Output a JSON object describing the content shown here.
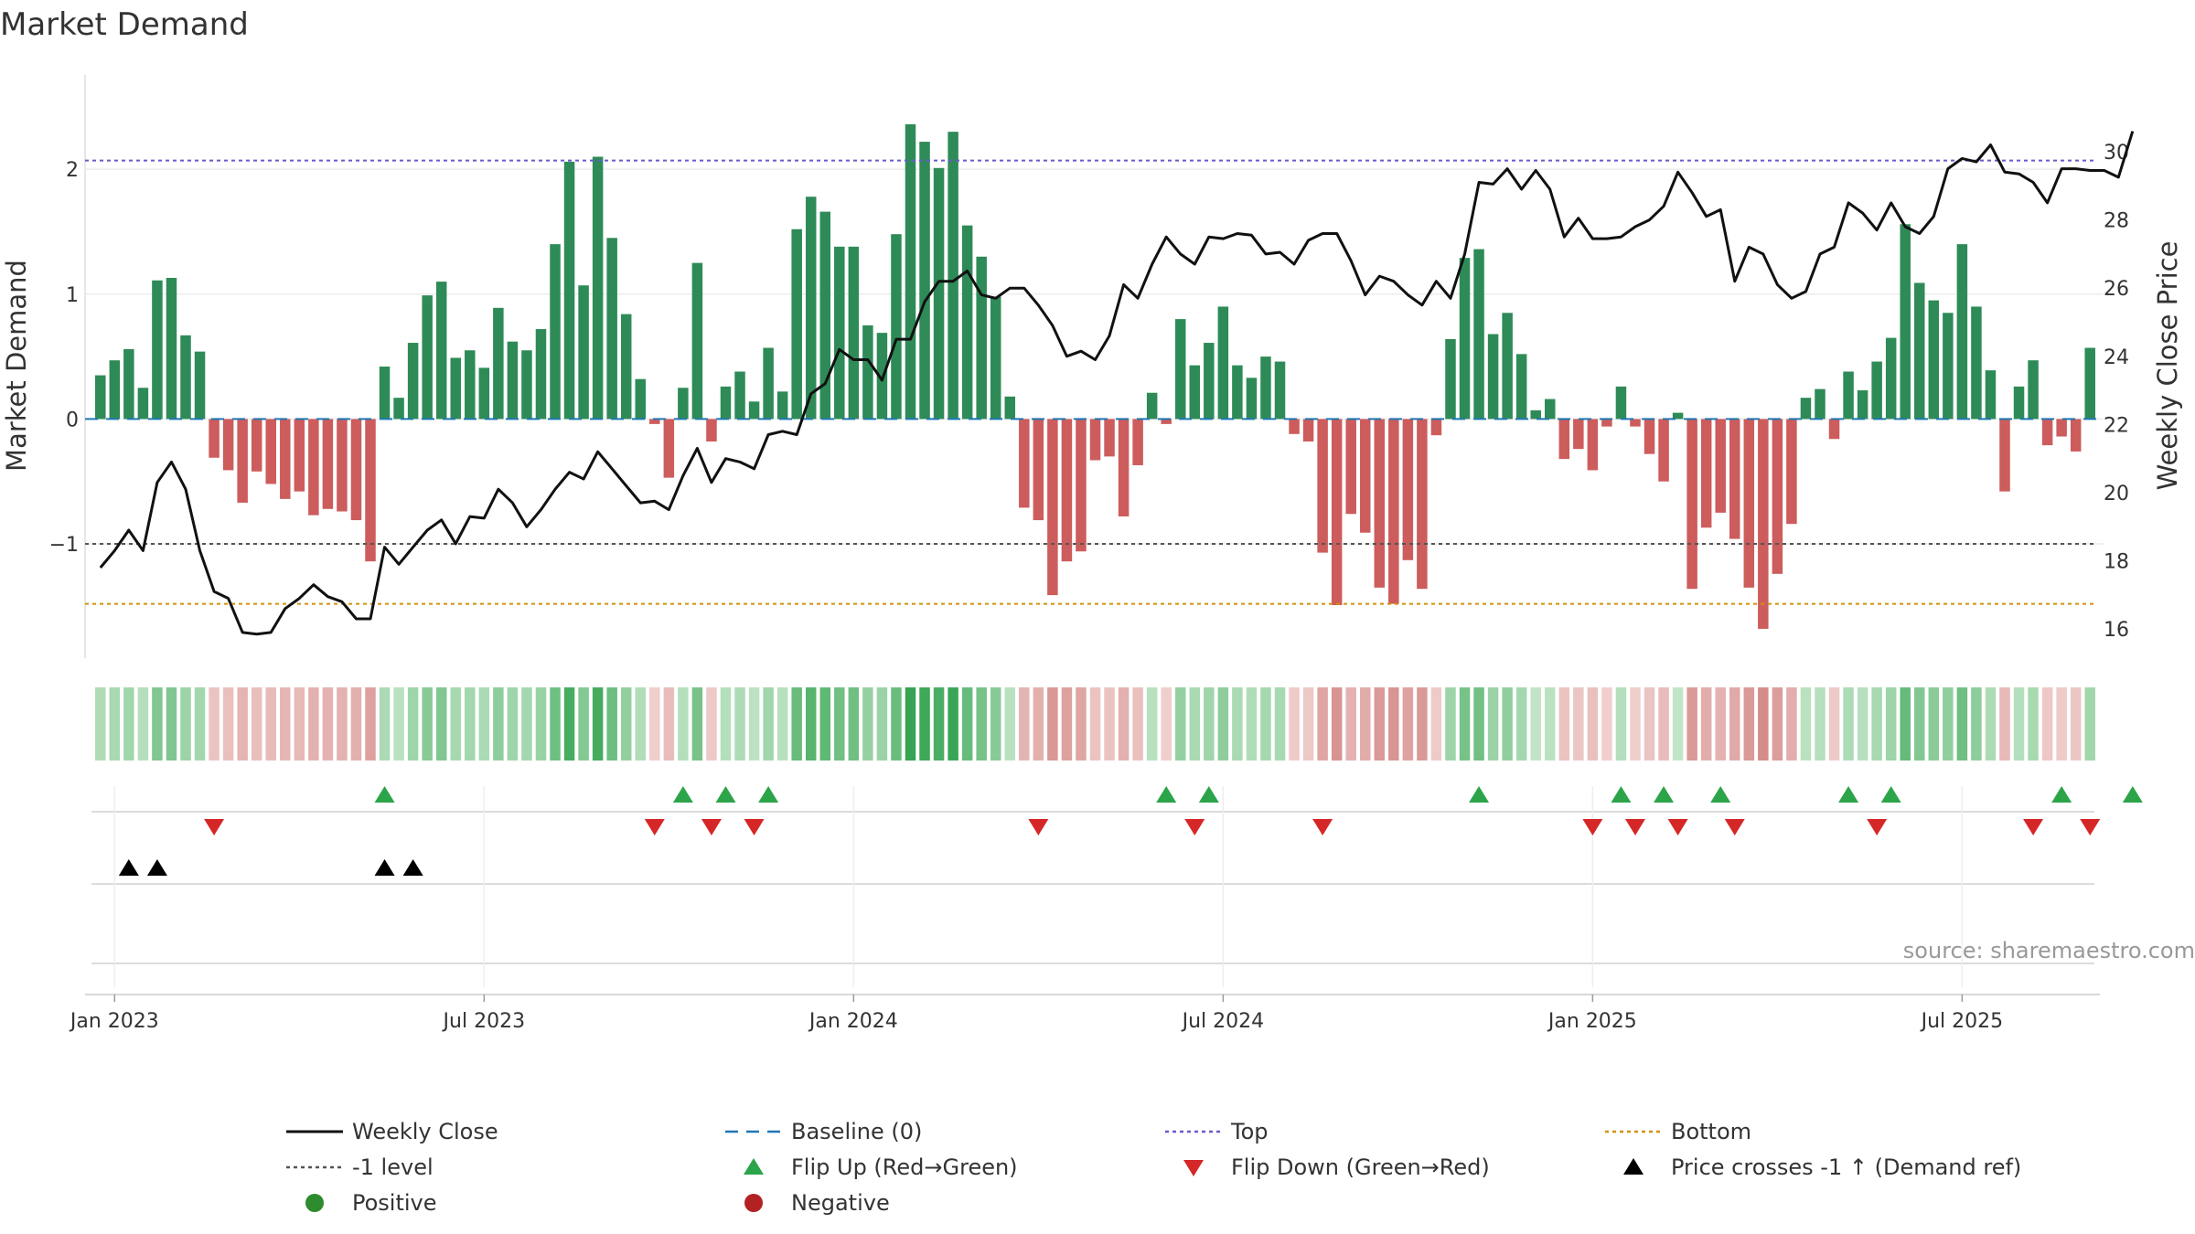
{
  "chart_data": {
    "type": "bar",
    "title": "Market Demand",
    "ylabel_left": "Market Demand",
    "ylabel_right": "Weekly Close Price",
    "source": "source: sharemaestro.com",
    "ylim_left": [
      -1.9,
      2.55
    ],
    "ylim_right": [
      15.2,
      31.5
    ],
    "yticks_left": [
      "2",
      "1",
      "0",
      "−1"
    ],
    "yticks_left_values": [
      2,
      1,
      0,
      -1
    ],
    "yticks_right": [
      "30",
      "28",
      "26",
      "24",
      "22",
      "20",
      "18",
      "16"
    ],
    "yticks_right_values": [
      30,
      28,
      26,
      24,
      22,
      20,
      18,
      16
    ],
    "xtick_labels": [
      "Jan 2023",
      "Jul 2023",
      "Jan 2024",
      "Jul 2024",
      "Jan 2025",
      "Jul 2025"
    ],
    "xtick_weeks": [
      1.5,
      27.5,
      53.5,
      79.5,
      105.5,
      131.5
    ],
    "reference_lines": {
      "top": 2.07,
      "minus_one": -1.0,
      "bottom": -1.48,
      "baseline": 0
    },
    "demand": [
      0.35,
      0.47,
      0.56,
      0.25,
      1.11,
      1.13,
      0.67,
      0.54,
      -0.31,
      -0.41,
      -0.67,
      -0.42,
      -0.52,
      -0.64,
      -0.58,
      -0.77,
      -0.72,
      -0.74,
      -0.81,
      -1.14,
      0.42,
      0.17,
      0.61,
      0.99,
      1.1,
      0.49,
      0.55,
      0.41,
      0.89,
      0.62,
      0.55,
      0.72,
      1.4,
      2.06,
      1.07,
      2.1,
      1.45,
      0.84,
      0.32,
      -0.04,
      -0.47,
      0.25,
      1.25,
      -0.18,
      0.26,
      0.38,
      0.14,
      0.57,
      0.22,
      1.52,
      1.78,
      1.66,
      1.38,
      1.38,
      0.75,
      0.69,
      1.48,
      2.36,
      2.22,
      2.01,
      2.3,
      1.55,
      1.3,
      0.98,
      0.18,
      -0.71,
      -0.81,
      -1.41,
      -1.14,
      -1.06,
      -0.33,
      -0.3,
      -0.78,
      -0.37,
      0.21,
      -0.04,
      0.8,
      0.43,
      0.61,
      0.9,
      0.43,
      0.33,
      0.5,
      0.46,
      -0.12,
      -0.18,
      -1.07,
      -1.49,
      -0.76,
      -0.91,
      -1.35,
      -1.48,
      -1.13,
      -1.36,
      -0.13,
      0.64,
      1.29,
      1.36,
      0.68,
      0.85,
      0.52,
      0.07,
      0.16,
      -0.32,
      -0.24,
      -0.41,
      -0.06,
      0.26,
      -0.06,
      -0.28,
      -0.5,
      0.05,
      -1.36,
      -0.87,
      -0.75,
      -0.96,
      -1.35,
      -1.68,
      -1.24,
      -0.84,
      0.17,
      0.24,
      -0.16,
      0.38,
      0.23,
      0.46,
      0.65,
      1.56,
      1.09,
      0.95,
      0.85,
      1.4,
      0.9,
      0.39,
      -0.58,
      0.26,
      0.47,
      -0.21,
      -0.14,
      -0.26,
      0.57
    ],
    "close": [
      17.8,
      18.3,
      18.9,
      18.3,
      20.3,
      20.9,
      20.1,
      18.3,
      17.1,
      16.9,
      15.9,
      15.85,
      15.9,
      16.6,
      16.9,
      17.3,
      16.95,
      16.8,
      16.3,
      16.3,
      18.4,
      17.9,
      18.4,
      18.9,
      19.2,
      18.5,
      19.3,
      19.25,
      20.1,
      19.7,
      19.0,
      19.5,
      20.1,
      20.6,
      20.4,
      21.2,
      20.7,
      20.2,
      19.7,
      19.75,
      19.5,
      20.5,
      21.3,
      20.3,
      21.0,
      20.9,
      20.7,
      21.7,
      21.8,
      21.7,
      22.9,
      23.2,
      24.2,
      23.9,
      23.9,
      23.3,
      24.5,
      24.5,
      25.6,
      26.2,
      26.2,
      26.5,
      25.8,
      25.7,
      26.0,
      26.0,
      25.5,
      24.9,
      24.0,
      24.15,
      23.9,
      24.6,
      26.1,
      25.7,
      26.7,
      27.5,
      27.0,
      26.7,
      27.5,
      27.45,
      27.6,
      27.55,
      27.0,
      27.05,
      26.7,
      27.4,
      27.6,
      27.6,
      26.8,
      25.8,
      26.35,
      26.2,
      25.8,
      25.5,
      26.2,
      25.7,
      27.0,
      29.1,
      29.05,
      29.5,
      28.9,
      29.45,
      28.9,
      27.5,
      28.05,
      27.45,
      27.45,
      27.5,
      27.8,
      28.0,
      28.4,
      29.4,
      28.8,
      28.1,
      28.3,
      26.2,
      27.2,
      27.0,
      26.1,
      25.7,
      25.9,
      27.0,
      27.2,
      28.5,
      28.2,
      27.7,
      28.5,
      27.8,
      27.6,
      28.1,
      29.5,
      29.8,
      29.7,
      30.2,
      29.4,
      29.35,
      29.1,
      28.5,
      29.5,
      29.5,
      29.45,
      29.45,
      29.25,
      30.6
    ],
    "markers": {
      "flip_up": [
        20,
        41,
        44,
        47,
        75,
        78,
        97,
        107,
        110,
        114,
        123,
        126,
        138,
        143
      ],
      "flip_down": [
        8,
        39,
        43,
        46,
        66,
        77,
        86,
        105,
        108,
        111,
        115,
        125,
        136,
        140
      ],
      "price_cross_up": [
        2,
        4,
        20,
        22
      ]
    },
    "legend": [
      {
        "label": "Weekly Close",
        "kind": "line-solid",
        "color": "#111111"
      },
      {
        "label": "Baseline (0)",
        "kind": "line-dash",
        "color": "#1f77b4"
      },
      {
        "label": "Top",
        "kind": "line-dot",
        "color": "#6a5acd"
      },
      {
        "label": "Bottom",
        "kind": "line-dot",
        "color": "#d4900a"
      },
      {
        "label": "-1 level",
        "kind": "line-dot",
        "color": "#555555"
      },
      {
        "label": "Flip Up (Red→Green)",
        "kind": "tri-up",
        "color": "#2ca44a"
      },
      {
        "label": "Flip Down (Green→Red)",
        "kind": "tri-down",
        "color": "#d62728"
      },
      {
        "label": "Price crosses -1 ↑ (Demand ref)",
        "kind": "tri-up",
        "color": "#000000"
      },
      {
        "label": "Positive",
        "kind": "dot",
        "color": "#2e8b2e"
      },
      {
        "label": "Negative",
        "kind": "dot",
        "color": "#b22222"
      }
    ],
    "colors": {
      "positive": "#2e8b57",
      "negative": "#cd5c5c",
      "close_line": "#111111",
      "flip_up": "#2ca44a",
      "flip_down": "#d62728",
      "cross": "#000000"
    }
  }
}
